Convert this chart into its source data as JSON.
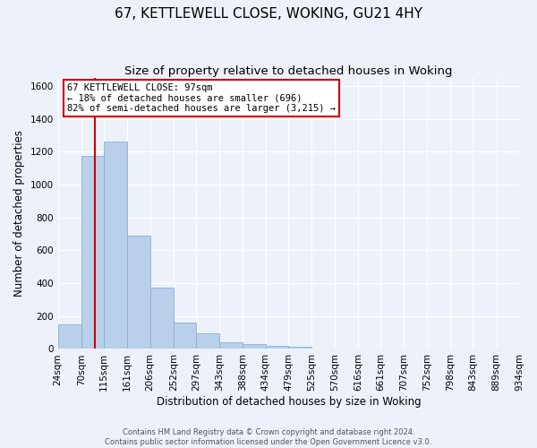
{
  "title": "67, KETTLEWELL CLOSE, WOKING, GU21 4HY",
  "subtitle": "Size of property relative to detached houses in Woking",
  "xlabel": "Distribution of detached houses by size in Woking",
  "ylabel": "Number of detached properties",
  "bin_labels": [
    "24sqm",
    "70sqm",
    "115sqm",
    "161sqm",
    "206sqm",
    "252sqm",
    "297sqm",
    "343sqm",
    "388sqm",
    "434sqm",
    "479sqm",
    "525sqm",
    "570sqm",
    "616sqm",
    "661sqm",
    "707sqm",
    "752sqm",
    "798sqm",
    "843sqm",
    "889sqm",
    "934sqm"
  ],
  "bar_heights": [
    148,
    1175,
    1263,
    688,
    375,
    163,
    95,
    38,
    28,
    20,
    12,
    0,
    0,
    0,
    0,
    0,
    0,
    0,
    0,
    0
  ],
  "bar_color": "#b8d0ea",
  "bar_edgecolor": "#8ab0d8",
  "bg_color": "#edf2fa",
  "grid_color": "#ffffff",
  "vline_x": 97,
  "vline_color": "#cc0000",
  "annotation_text": "67 KETTLEWELL CLOSE: 97sqm\n← 18% of detached houses are smaller (696)\n82% of semi-detached houses are larger (3,215) →",
  "annotation_box_color": "#ffffff",
  "annotation_box_edgecolor": "#cc0000",
  "footer_text": "Contains HM Land Registry data © Crown copyright and database right 2024.\nContains public sector information licensed under the Open Government Licence v3.0.",
  "ylim": [
    0,
    1650
  ],
  "yticks": [
    0,
    200,
    400,
    600,
    800,
    1000,
    1200,
    1400,
    1600
  ],
  "title_fontsize": 11,
  "subtitle_fontsize": 9.5,
  "axis_label_fontsize": 8.5,
  "tick_fontsize": 7.5,
  "annot_fontsize": 7.5,
  "footer_fontsize": 6
}
